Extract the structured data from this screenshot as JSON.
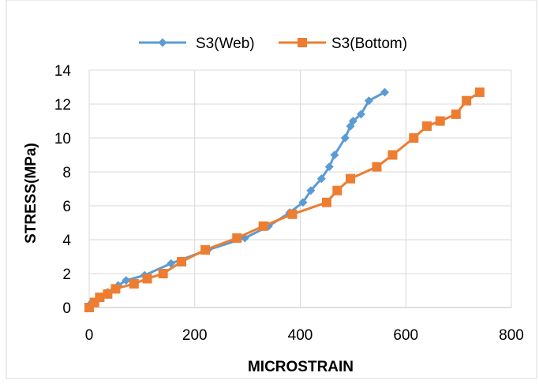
{
  "chart_data": {
    "type": "line",
    "title": "",
    "xlabel": "MICROSTRAIN",
    "ylabel": "STRESS(MPa)",
    "xlim": [
      0,
      800
    ],
    "ylim": [
      0,
      14
    ],
    "xticks": [
      0,
      200,
      400,
      600,
      800
    ],
    "yticks": [
      0,
      2,
      4,
      6,
      8,
      10,
      12,
      14
    ],
    "grid": true,
    "legend": "top",
    "series": [
      {
        "name": "S3(Web)",
        "color": "#5b9bd5",
        "marker": "diamond",
        "x": [
          0,
          5,
          20,
          35,
          55,
          70,
          105,
          155,
          225,
          295,
          340,
          380,
          405,
          420,
          440,
          455,
          465,
          485,
          495,
          500,
          515,
          530,
          560
        ],
        "y": [
          0,
          0.3,
          0.6,
          0.9,
          1.3,
          1.6,
          1.9,
          2.6,
          3.4,
          4.1,
          4.8,
          5.6,
          6.2,
          6.9,
          7.6,
          8.3,
          9.0,
          10.0,
          10.7,
          11.0,
          11.4,
          12.2,
          12.7
        ]
      },
      {
        "name": "S3(Bottom)",
        "color": "#ed7d31",
        "marker": "square",
        "x": [
          0,
          10,
          20,
          35,
          50,
          85,
          110,
          140,
          175,
          220,
          280,
          330,
          385,
          450,
          470,
          495,
          545,
          575,
          615,
          640,
          665,
          695,
          715,
          740
        ],
        "y": [
          0,
          0.3,
          0.6,
          0.8,
          1.1,
          1.4,
          1.7,
          2.0,
          2.7,
          3.4,
          4.1,
          4.8,
          5.5,
          6.2,
          6.9,
          7.6,
          8.3,
          9.0,
          10.0,
          10.7,
          11.0,
          11.4,
          12.2,
          12.7
        ]
      }
    ]
  }
}
